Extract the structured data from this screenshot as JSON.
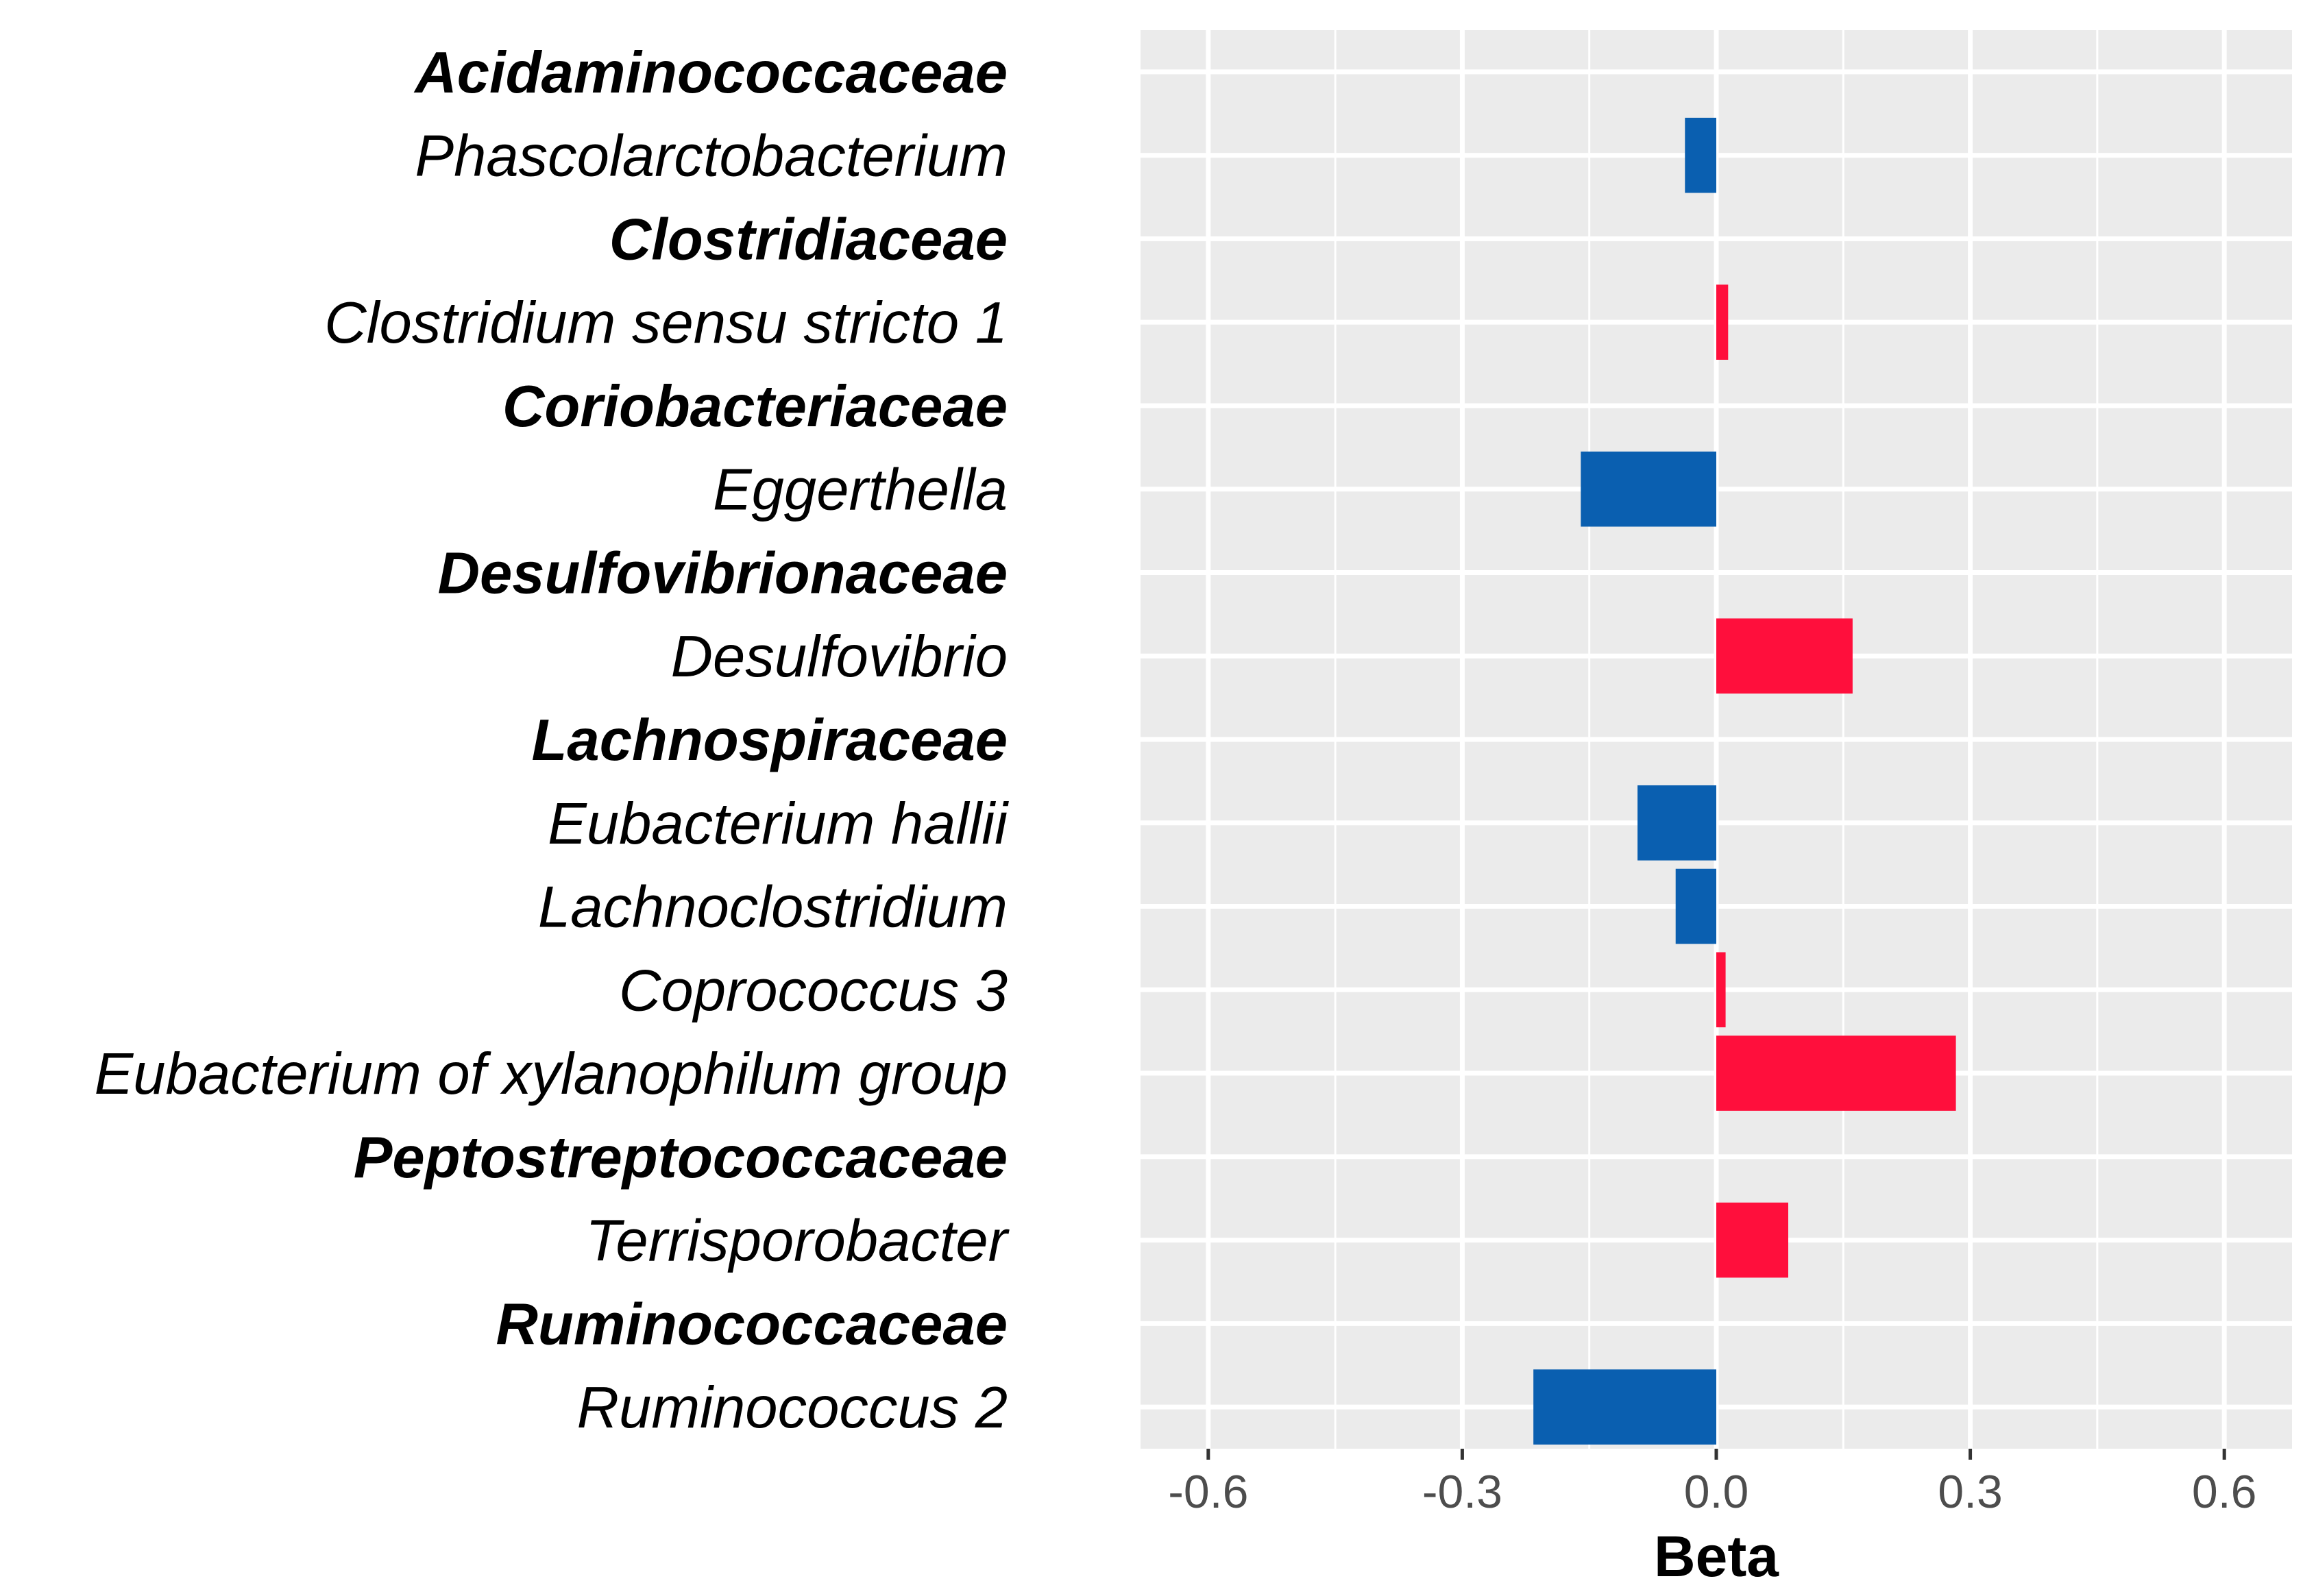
{
  "chart_data": {
    "type": "bar",
    "orientation": "horizontal",
    "title": "",
    "xlabel": "Beta",
    "ylabel": "",
    "xlim": [
      -0.68,
      0.68
    ],
    "xticks": [
      -0.6,
      -0.3,
      0.0,
      0.3,
      0.6
    ],
    "xtick_labels": [
      "-0.6",
      "-0.3",
      "0.0",
      "0.3",
      "0.6"
    ],
    "grid": true,
    "legend": "none",
    "colors": {
      "negative": "#0a5fb0",
      "positive": "#ff0f3c",
      "panel": "#ebebeb",
      "grid": "#ffffff"
    },
    "rows": [
      {
        "label": "Acidaminococcaceae",
        "is_family": true,
        "value": null
      },
      {
        "label": "Phascolarctobacterium",
        "is_family": false,
        "value": -0.037
      },
      {
        "label": "Clostridiaceae",
        "is_family": true,
        "value": null
      },
      {
        "label": "Clostridium sensu stricto 1",
        "is_family": false,
        "value": 0.014
      },
      {
        "label": "Coriobacteriaceae",
        "is_family": true,
        "value": null
      },
      {
        "label": "Eggerthella",
        "is_family": false,
        "value": -0.16
      },
      {
        "label": "Desulfovibrionaceae",
        "is_family": true,
        "value": null
      },
      {
        "label": "Desulfovibrio",
        "is_family": false,
        "value": 0.161
      },
      {
        "label": "Lachnospiraceae",
        "is_family": true,
        "value": null
      },
      {
        "label": "Eubacterium hallii",
        "is_family": false,
        "value": -0.093
      },
      {
        "label": "Lachnoclostridium",
        "is_family": false,
        "value": -0.048
      },
      {
        "label": "Coprococcus 3",
        "is_family": false,
        "value": 0.011
      },
      {
        "label": "Eubacterium of xylanophilum group",
        "is_family": false,
        "value": 0.283
      },
      {
        "label": "Peptostreptococcaceae",
        "is_family": true,
        "value": null
      },
      {
        "label": "Terrisporobacter",
        "is_family": false,
        "value": 0.085
      },
      {
        "label": "Ruminococcaceae",
        "is_family": true,
        "value": null
      },
      {
        "label": "Ruminococcus 2",
        "is_family": false,
        "value": -0.216
      }
    ]
  }
}
